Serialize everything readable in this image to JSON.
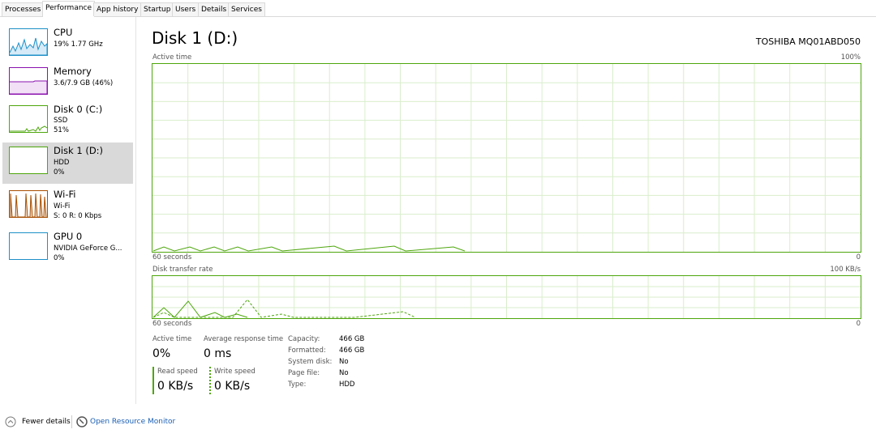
{
  "tabs": [
    "Processes",
    "Performance",
    "App history",
    "Startup",
    "Users",
    "Details",
    "Services"
  ],
  "sidebar": [
    {
      "name": "CPU",
      "detail": "19% 1.77 GHz"
    },
    {
      "name": "Memory",
      "detail": "3.6/7.9 GB (46%)"
    },
    {
      "name": "Disk 0 (C:)",
      "type": "SSD",
      "detail": "51%"
    },
    {
      "name": "Disk 1 (D:)",
      "type": "HDD",
      "detail": "0%"
    },
    {
      "name": "Wi-Fi",
      "type": "Wi-Fi",
      "detail": "S: 0 R: 0 Kbps"
    },
    {
      "name": "GPU 0",
      "type": "NVIDIA GeForce G...",
      "detail": "0%"
    }
  ],
  "header": {
    "title": "Disk 1 (D:)",
    "model": "TOSHIBA MQ01ABD050"
  },
  "graph1": {
    "label": "Active time",
    "max": "100%",
    "time": "60 seconds",
    "min": "0"
  },
  "graph2": {
    "label": "Disk transfer rate",
    "max": "100 KB/s",
    "time": "60 seconds",
    "min": "0"
  },
  "stats": {
    "active_label": "Active time",
    "active_value": "0%",
    "response_label": "Average response time",
    "response_value": "0 ms",
    "read_label": "Read speed",
    "read_value": "0 KB/s",
    "write_label": "Write speed",
    "write_value": "0 KB/s"
  },
  "properties": [
    [
      "Capacity:",
      "466 GB"
    ],
    [
      "Formatted:",
      "466 GB"
    ],
    [
      "System disk:",
      "No"
    ],
    [
      "Page file:",
      "No"
    ],
    [
      "Type:",
      "HDD"
    ]
  ],
  "footer": {
    "fewer": "Fewer details",
    "monitor": "Open Resource Monitor"
  }
}
